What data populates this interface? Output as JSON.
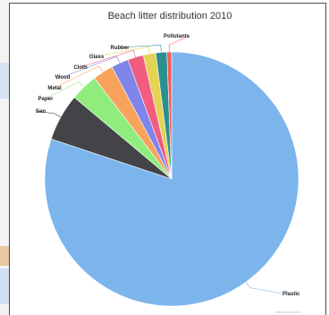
{
  "chart_data": {
    "type": "pie",
    "title": "Beach litter distribution 2010",
    "slices": [
      {
        "label": "Pollutants",
        "value": 0.6,
        "color": "#f45b5b"
      },
      {
        "label": "Rubber",
        "value": 1.4,
        "color": "#2b908f"
      },
      {
        "label": "Glass",
        "value": 1.6,
        "color": "#e4d354"
      },
      {
        "label": "Cloth",
        "value": 2.0,
        "color": "#f15c80"
      },
      {
        "label": "Wood",
        "value": 2.2,
        "color": "#8085e9"
      },
      {
        "label": "Metal",
        "value": 2.6,
        "color": "#f7a35c"
      },
      {
        "label": "Paper",
        "value": 3.5,
        "color": "#90ed7d"
      },
      {
        "label": "San",
        "value": 6.0,
        "color": "#434348"
      },
      {
        "label": "Plastic",
        "value": 80.1,
        "color": "#7cb5ec"
      }
    ],
    "start": "top",
    "direction": "clockwise-from-plastic",
    "credit": "Highcharts.com"
  },
  "colors": {
    "border": "#4a4a4a",
    "background": "#ffffff"
  }
}
